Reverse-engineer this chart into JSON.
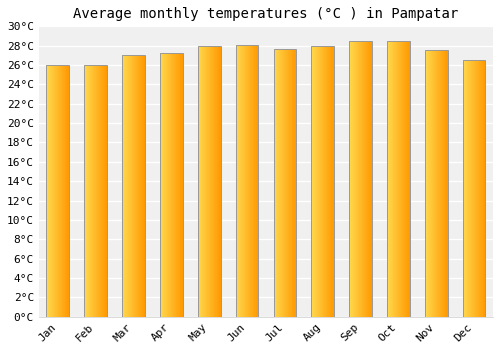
{
  "title": "Average monthly temperatures (°C ) in Pampatar",
  "months": [
    "Jan",
    "Feb",
    "Mar",
    "Apr",
    "May",
    "Jun",
    "Jul",
    "Aug",
    "Sep",
    "Oct",
    "Nov",
    "Dec"
  ],
  "values": [
    26.0,
    26.0,
    27.0,
    27.2,
    28.0,
    28.1,
    27.7,
    28.0,
    28.5,
    28.5,
    27.5,
    26.5
  ],
  "bar_color_left": "#FFD84D",
  "bar_color_right": "#FF9800",
  "bar_edge_color": "#999999",
  "background_color": "#ffffff",
  "plot_bg_color": "#f0f0f0",
  "grid_color": "#ffffff",
  "ytick_step": 2,
  "ymin": 0,
  "ymax": 30,
  "title_fontsize": 10,
  "tick_fontsize": 8,
  "font_family": "monospace",
  "bar_width": 0.6
}
